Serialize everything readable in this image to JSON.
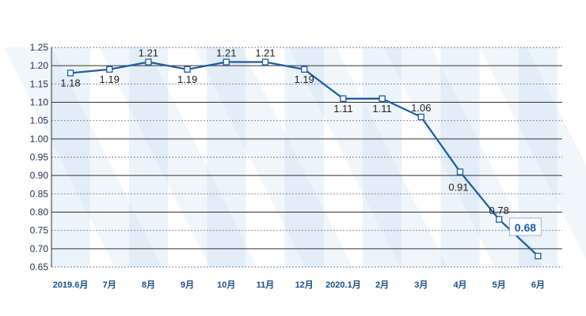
{
  "chart_data": {
    "type": "line",
    "title": "",
    "xlabel": "",
    "ylabel": "",
    "categories": [
      "2019.6月",
      "7月",
      "8月",
      "9月",
      "10月",
      "11月",
      "12月",
      "2020.1月",
      "2月",
      "3月",
      "4月",
      "5月",
      "6月"
    ],
    "series": [
      {
        "values": [
          1.18,
          1.19,
          1.21,
          1.19,
          1.21,
          1.21,
          1.19,
          1.11,
          1.11,
          1.06,
          0.91,
          0.78,
          0.68
        ]
      }
    ],
    "data_labels": [
      "1.18",
      "1.19",
      "1.21",
      "1.19",
      "1.21",
      "1.21",
      "1.19",
      "1.11",
      "1.11",
      "1.06",
      "0.91",
      "0.78",
      "0.68"
    ],
    "ylim": [
      0.65,
      1.25
    ],
    "yticks": [
      "0.65",
      "0.70",
      "0.75",
      "0.80",
      "0.85",
      "0.90",
      "0.95",
      "1.00",
      "1.05",
      "1.10",
      "1.15",
      "1.20",
      "1.25"
    ],
    "highlight_last": true,
    "grid": true,
    "colors": {
      "line": "#1a5aa8",
      "marker_fill": "#ffffff",
      "grid": "#555555",
      "band": "#dbe9f7"
    }
  }
}
